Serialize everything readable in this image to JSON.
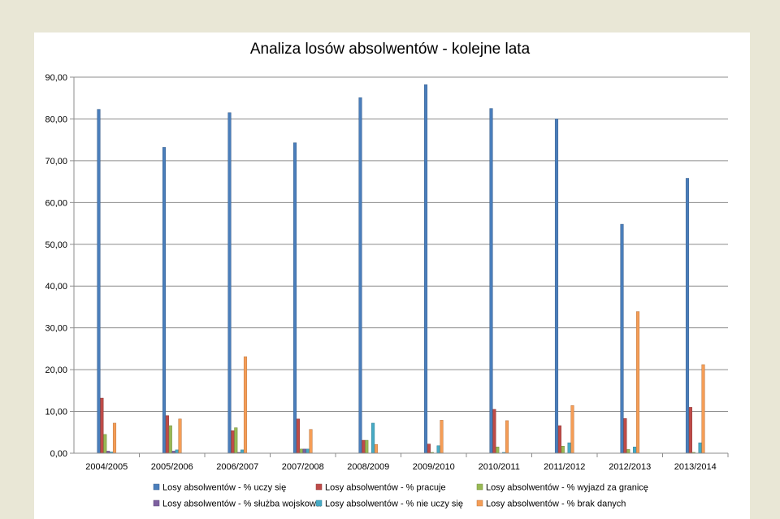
{
  "chart_data": {
    "type": "bar",
    "title": "Analiza losów absolwentów - kolejne lata",
    "xlabel": "",
    "ylabel": "",
    "ylim": [
      0,
      90
    ],
    "yticks": [
      "0,00",
      "10,00",
      "20,00",
      "30,00",
      "40,00",
      "50,00",
      "60,00",
      "70,00",
      "80,00",
      "90,00"
    ],
    "grid": true,
    "legend_position": "bottom",
    "categories": [
      "2004/2005",
      "2005/2006",
      "2006/2007",
      "2007/2008",
      "2008/2009",
      "2009/2010",
      "2010/2011",
      "2011/2012",
      "2012/2013",
      "2013/2014"
    ],
    "series": [
      {
        "name": "Losy absolwentów - % uczy się",
        "color": "#4a7ebb",
        "values": [
          82.3,
          73.2,
          81.5,
          74.3,
          85.1,
          88.2,
          82.5,
          80.0,
          54.8,
          65.8
        ]
      },
      {
        "name": "Losy absolwentów - % pracuje",
        "color": "#be4b48",
        "values": [
          13.2,
          9.0,
          5.4,
          8.2,
          3.1,
          2.2,
          10.5,
          6.6,
          8.3,
          11.0
        ]
      },
      {
        "name": "Losy absolwentów - % wyjazd za granicę",
        "color": "#98b954",
        "values": [
          4.5,
          6.6,
          6.1,
          1.0,
          3.1,
          0.2,
          1.5,
          1.7,
          0.9,
          0.2
        ]
      },
      {
        "name": "Losy absolwentów - % służba wojskowa",
        "color": "#7d60a0",
        "values": [
          0.5,
          0.5,
          0.2,
          1.0,
          0.0,
          0.0,
          0.0,
          0.0,
          0.0,
          0.0
        ]
      },
      {
        "name": "Losy absolwentów - % nie uczy się",
        "color": "#46aac5",
        "values": [
          0.3,
          0.8,
          0.8,
          1.0,
          7.2,
          1.8,
          0.2,
          2.5,
          1.5,
          2.5
        ]
      },
      {
        "name": "Losy absolwentów - % brak danych",
        "color": "#f59d56",
        "values": [
          7.2,
          8.2,
          23.1,
          5.7,
          2.1,
          7.9,
          7.8,
          11.4,
          33.9,
          21.2
        ]
      }
    ]
  }
}
